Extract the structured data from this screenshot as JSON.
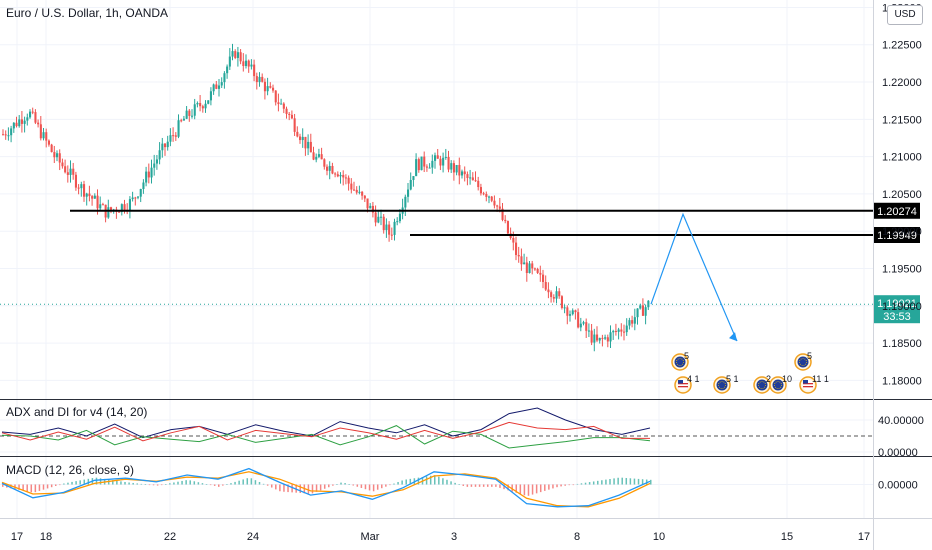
{
  "currency_button": "USD",
  "main": {
    "title": "Euro / U.S. Dollar, 1h, OANDA",
    "price_ticks": [
      "1.23000",
      "1.22500",
      "1.22000",
      "1.21500",
      "1.21000",
      "1.20500",
      "1.20000",
      "1.19500",
      "1.19000",
      "1.18500",
      "1.18000"
    ],
    "levels": [
      {
        "label": "1.20274",
        "value": 1.20274
      },
      {
        "label": "1.19949",
        "value": 1.19949
      }
    ],
    "current_price": {
      "label": "1.19021",
      "countdown": "33:53",
      "value": 1.19021
    }
  },
  "adx": {
    "title": "ADX and DI for v4 (14, 20)",
    "ticks": [
      "40.00000",
      "0.00000"
    ]
  },
  "macd": {
    "title": "MACD (12, 26, close, 9)",
    "ticks": [
      "0.00000"
    ]
  },
  "x_axis": {
    "ticks": [
      "17",
      "18",
      "22",
      "24",
      "Mar",
      "3",
      "8",
      "10",
      "15",
      "17"
    ]
  },
  "events": [
    {
      "label": "5"
    },
    {
      "label": "4 1"
    },
    {
      "label": "5 1"
    },
    {
      "label": "2"
    },
    {
      "label": "10"
    },
    {
      "label": "5"
    },
    {
      "label": "11 1"
    }
  ],
  "colors": {
    "up": "#26a69a",
    "down": "#ef5350",
    "price_line": "#26a69a",
    "level_line": "#000000",
    "projection": "#2196f3",
    "adx": "#131a6b",
    "di_plus": "#2ea043",
    "di_minus": "#e53935",
    "macd_line": "#2196f3",
    "signal_line": "#ff9800",
    "grid": "#f0f3fa"
  },
  "chart_data": [
    {
      "type": "candlestick",
      "title": "Euro / U.S. Dollar, 1h, OANDA",
      "ylim": [
        1.1775,
        1.231
      ],
      "path_x": [
        "Feb 16",
        "Feb 17",
        "Feb 17",
        "Feb 18",
        "Feb 18",
        "Feb 19",
        "Feb 22",
        "Feb 23",
        "Feb 24",
        "Feb 25",
        "Feb 25",
        "Feb 26",
        "Feb 26",
        "Mar 1",
        "Mar 2",
        "Mar 2",
        "Mar 3",
        "Mar 3",
        "Mar 4",
        "Mar 4",
        "Mar 5",
        "Mar 5",
        "Mar 8",
        "Mar 8",
        "Mar 9",
        "Mar 9"
      ],
      "path_y": [
        1.213,
        1.216,
        1.21,
        1.206,
        1.2025,
        1.204,
        1.21,
        1.215,
        1.218,
        1.224,
        1.22,
        1.216,
        1.21,
        1.208,
        1.204,
        1.1995,
        1.209,
        1.2095,
        1.207,
        1.2045,
        1.196,
        1.193,
        1.189,
        1.185,
        1.187,
        1.1902
      ],
      "projection": {
        "from": 1.19021,
        "peak": 1.202,
        "end": 1.185
      },
      "levels": [
        1.20274,
        1.19949
      ],
      "last_price": 1.19021
    },
    {
      "type": "line",
      "title": "ADX and DI for v4 (14, 20)",
      "ylim": [
        0,
        60
      ],
      "threshold": 20,
      "series": [
        {
          "name": "ADX",
          "values": [
            25,
            22,
            30,
            20,
            35,
            18,
            28,
            32,
            22,
            34,
            26,
            20,
            38,
            30,
            24,
            34,
            20,
            28,
            48,
            55,
            40,
            28,
            22,
            30
          ]
        },
        {
          "name": "+DI",
          "values": [
            18,
            22,
            15,
            25,
            12,
            20,
            15,
            10,
            24,
            12,
            15,
            25,
            10,
            18,
            30,
            12,
            26,
            20,
            8,
            10,
            12,
            15,
            20,
            14
          ]
        },
        {
          "name": "-DI",
          "values": [
            22,
            18,
            26,
            15,
            28,
            16,
            24,
            30,
            18,
            28,
            22,
            16,
            32,
            24,
            14,
            30,
            18,
            24,
            34,
            32,
            28,
            30,
            20,
            18
          ]
        }
      ]
    },
    {
      "type": "line",
      "title": "MACD (12, 26, close, 9)",
      "ylim": [
        -0.005,
        0.005
      ],
      "series": [
        {
          "name": "MACD",
          "values": [
            0.0002,
            -0.0025,
            -0.0015,
            0.0008,
            0.0012,
            0.0005,
            0.0018,
            0.001,
            0.003,
            0.0004,
            -0.002,
            -0.0012,
            -0.0028,
            -0.0006,
            0.0024,
            0.0018,
            0.001,
            -0.0036,
            -0.0042,
            -0.004,
            -0.002,
            0.0006
          ]
        },
        {
          "name": "Signal",
          "values": [
            0.0004,
            -0.0018,
            -0.0016,
            0.0002,
            0.001,
            0.0006,
            0.0014,
            0.0012,
            0.0024,
            0.001,
            -0.0012,
            -0.0014,
            -0.0022,
            -0.001,
            0.0016,
            0.002,
            0.0012,
            -0.0026,
            -0.004,
            -0.0042,
            -0.0026,
            0.0002
          ]
        }
      ]
    }
  ]
}
